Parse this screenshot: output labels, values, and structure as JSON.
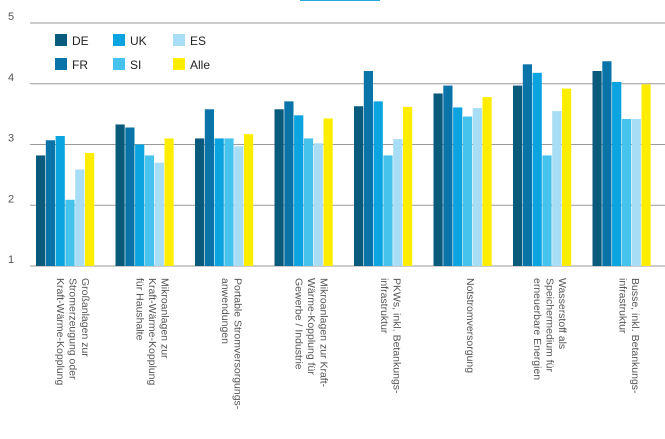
{
  "chart_data": {
    "type": "bar",
    "ylim": [
      1,
      5
    ],
    "yticks": [
      "1",
      "2",
      "3",
      "4",
      "5"
    ],
    "grid": true,
    "legend_position": "top-left",
    "categories": [
      "Großanlagen zur Stromerzeugung oder Kraft-Wärme-Kopplung",
      "Mikroanlagen zur Kraft-Wärme-Kopplung für Haushalte",
      "Portable Stromversorgungs-anwendungen",
      "Mikroanlagen zur Kraft-Wärme-Kopplung für Gewerbe / Industrie",
      "PKWs, inkl. Betankungs-infrastruktur",
      "Notstromversorgung",
      "Wasserstoff als Speichermedium für erneuerbare Energien",
      "Busse, inkl. Betankungs-infrastruktur"
    ],
    "category_lines": [
      [
        "Großanlagen zur",
        "Stromerzeugung oder",
        "Kraft-Wärme-Kopplung"
      ],
      [
        "Mikroanlagen zur",
        "Kraft-Wärme-Kopplung",
        "für Haushalte"
      ],
      [
        "Portable Stromversorgungs-",
        "anwendungen"
      ],
      [
        "Mikroanlagen zur Kraft-",
        "Wärme-Kopplung für",
        "Gewerbe / Industrie"
      ],
      [
        "PKWs, inkl. Betankungs-",
        "infrastruktur"
      ],
      [
        "Notstromversorgung"
      ],
      [
        "Wasserstoff als",
        "Speichermedium für",
        "erneuerbare Energien"
      ],
      [
        "Busse, inkl. Betankungs-",
        "infrastruktur"
      ]
    ],
    "series": [
      {
        "name": "DE",
        "color": "#0a5a7c",
        "values": [
          2.82,
          3.33,
          3.1,
          3.58,
          3.63,
          3.84,
          3.97,
          4.21
        ]
      },
      {
        "name": "FR",
        "color": "#0a73a8",
        "values": [
          3.07,
          3.28,
          3.58,
          3.71,
          4.21,
          3.97,
          4.32,
          4.37
        ]
      },
      {
        "name": "UK",
        "color": "#0ba3e0",
        "values": [
          3.14,
          3.0,
          3.1,
          3.48,
          3.71,
          3.61,
          4.18,
          4.03
        ]
      },
      {
        "name": "SI",
        "color": "#45c3ec",
        "values": [
          2.09,
          2.82,
          3.1,
          3.1,
          2.82,
          3.46,
          2.82,
          3.42
        ]
      },
      {
        "name": "ES",
        "color": "#a8def5",
        "values": [
          2.59,
          2.7,
          2.97,
          3.02,
          3.09,
          3.6,
          3.55,
          3.42
        ]
      },
      {
        "name": "Alle",
        "color": "#ffed00",
        "values": [
          2.86,
          3.1,
          3.17,
          3.43,
          3.62,
          3.78,
          3.92,
          3.99
        ]
      }
    ]
  }
}
